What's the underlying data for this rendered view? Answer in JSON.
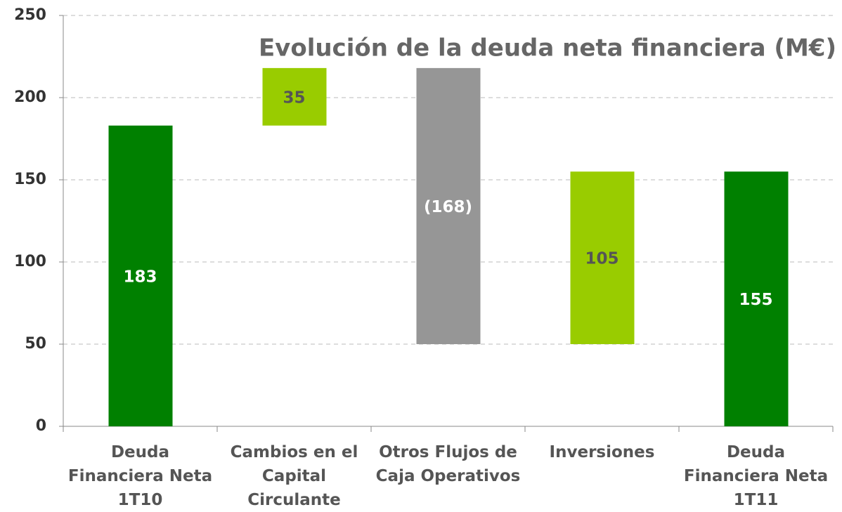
{
  "chart_data": {
    "type": "waterfall",
    "title": "Evolución de la deuda neta financiera (M€)",
    "categories": [
      "Deuda Financiera Neta 1T10",
      "Cambios en el Capital Circulante",
      "Otros Flujos de Caja Operativos",
      "Inversiones",
      "Deuda Financiera Neta 1T11"
    ],
    "values": [
      183,
      35,
      -168,
      105,
      155
    ],
    "value_labels": [
      "183",
      "35",
      "(168)",
      "105",
      "155"
    ],
    "is_total": [
      true,
      false,
      false,
      false,
      true
    ],
    "colors": [
      "#008000",
      "#99cc00",
      "#969696",
      "#99cc00",
      "#008000"
    ],
    "label_colors": [
      "#ffffff",
      "#555555",
      "#ffffff",
      "#555555",
      "#ffffff"
    ],
    "ylim": [
      0,
      250
    ],
    "yticks": [
      0,
      50,
      100,
      150,
      200,
      250
    ],
    "grid": true
  }
}
